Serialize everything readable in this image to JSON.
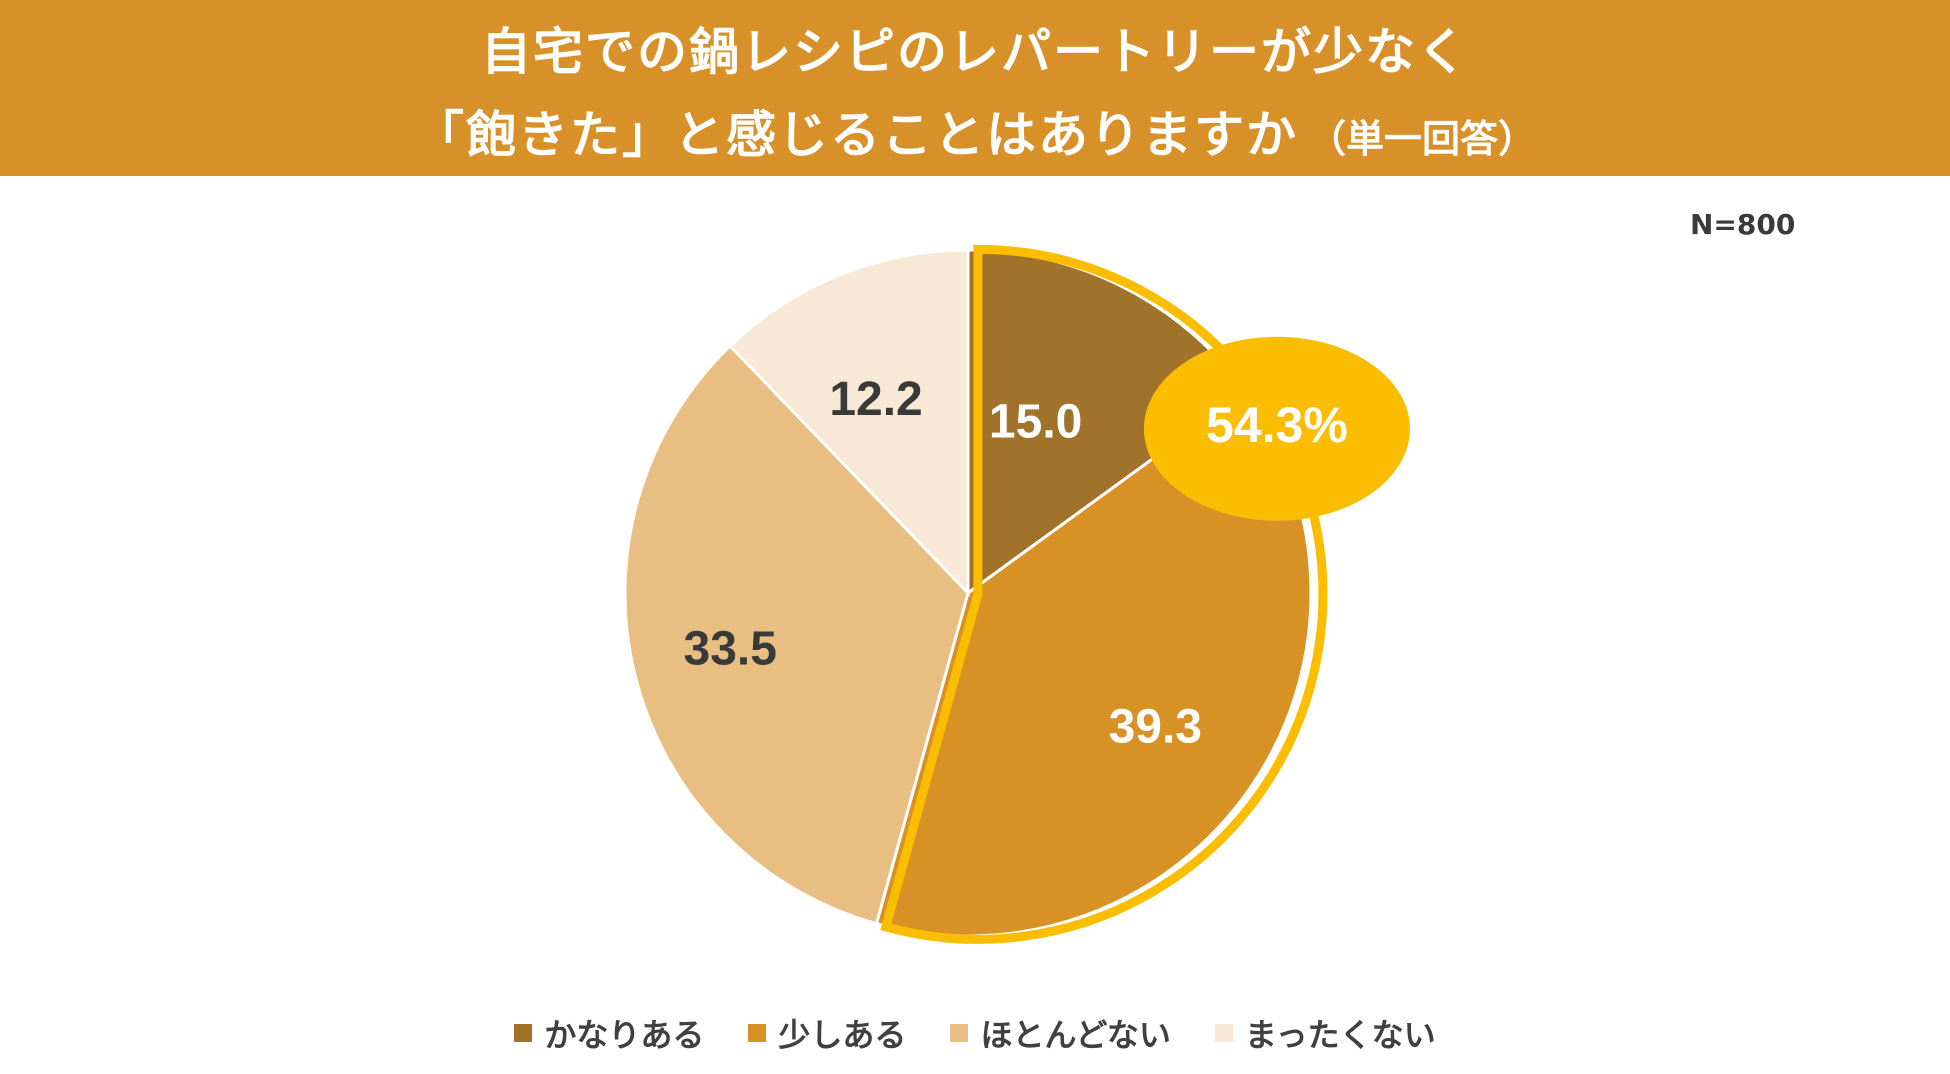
{
  "header": {
    "title_line1": "自宅での鍋レシピのレパートリーが少なく",
    "title_line2": "「飽きた」と感じることはありますか",
    "title_sub": "（単一回答）",
    "bg_color": "#d89129"
  },
  "n_label": "N=800",
  "highlight": {
    "label": "54.3%",
    "color": "#fbbd00"
  },
  "chart_data": {
    "type": "pie",
    "categories": [
      "かなりある",
      "少しある",
      "ほとんどない",
      "まったくない"
    ],
    "values": [
      15.0,
      39.3,
      33.5,
      12.2
    ],
    "value_labels": [
      "15.0",
      "39.3",
      "33.5",
      "12.2"
    ],
    "colors": [
      "#a1722a",
      "#d89125",
      "#e8be82",
      "#f8e8d6"
    ],
    "label_colors": [
      "#ffffff",
      "#ffffff",
      "#3a3a3a",
      "#3a3a3a"
    ],
    "start_angle": "12 o'clock",
    "direction": "clockwise",
    "legend_position": "bottom",
    "highlighted_categories": [
      "かなりある",
      "少しある"
    ]
  }
}
